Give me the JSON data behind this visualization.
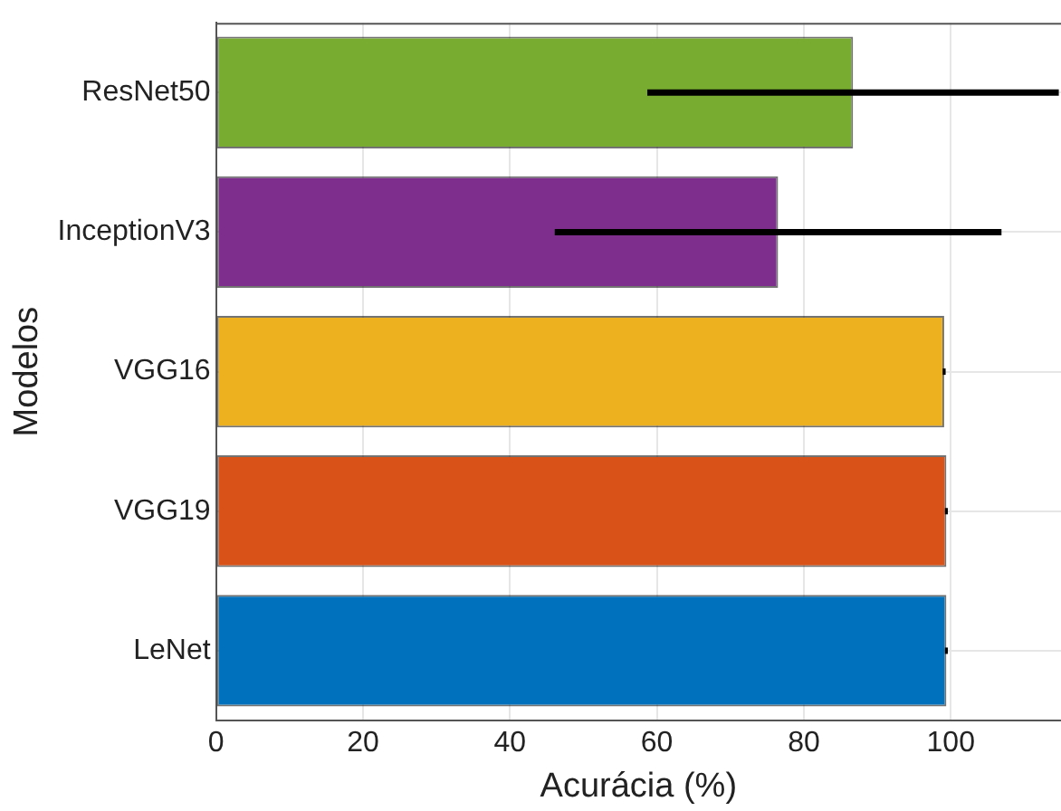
{
  "chart_data": {
    "type": "bar",
    "orientation": "horizontal",
    "xlabel": "Acurácia (%)",
    "ylabel": "Modelos",
    "categories": [
      "ResNet50",
      "InceptionV3",
      "VGG16",
      "VGG19",
      "LeNet"
    ],
    "values": [
      86.7,
      76.5,
      99.1,
      99.4,
      99.4
    ],
    "colors": [
      "#77ac30",
      "#7e2f8e",
      "#edb120",
      "#d95319",
      "#0072bd"
    ],
    "errors": [
      28,
      30.4,
      0.2,
      0.2,
      0.2
    ],
    "xlim": [
      0,
      115
    ],
    "xticks": [
      0,
      20,
      40,
      60,
      80,
      100
    ],
    "grid": true,
    "legend": false
  }
}
